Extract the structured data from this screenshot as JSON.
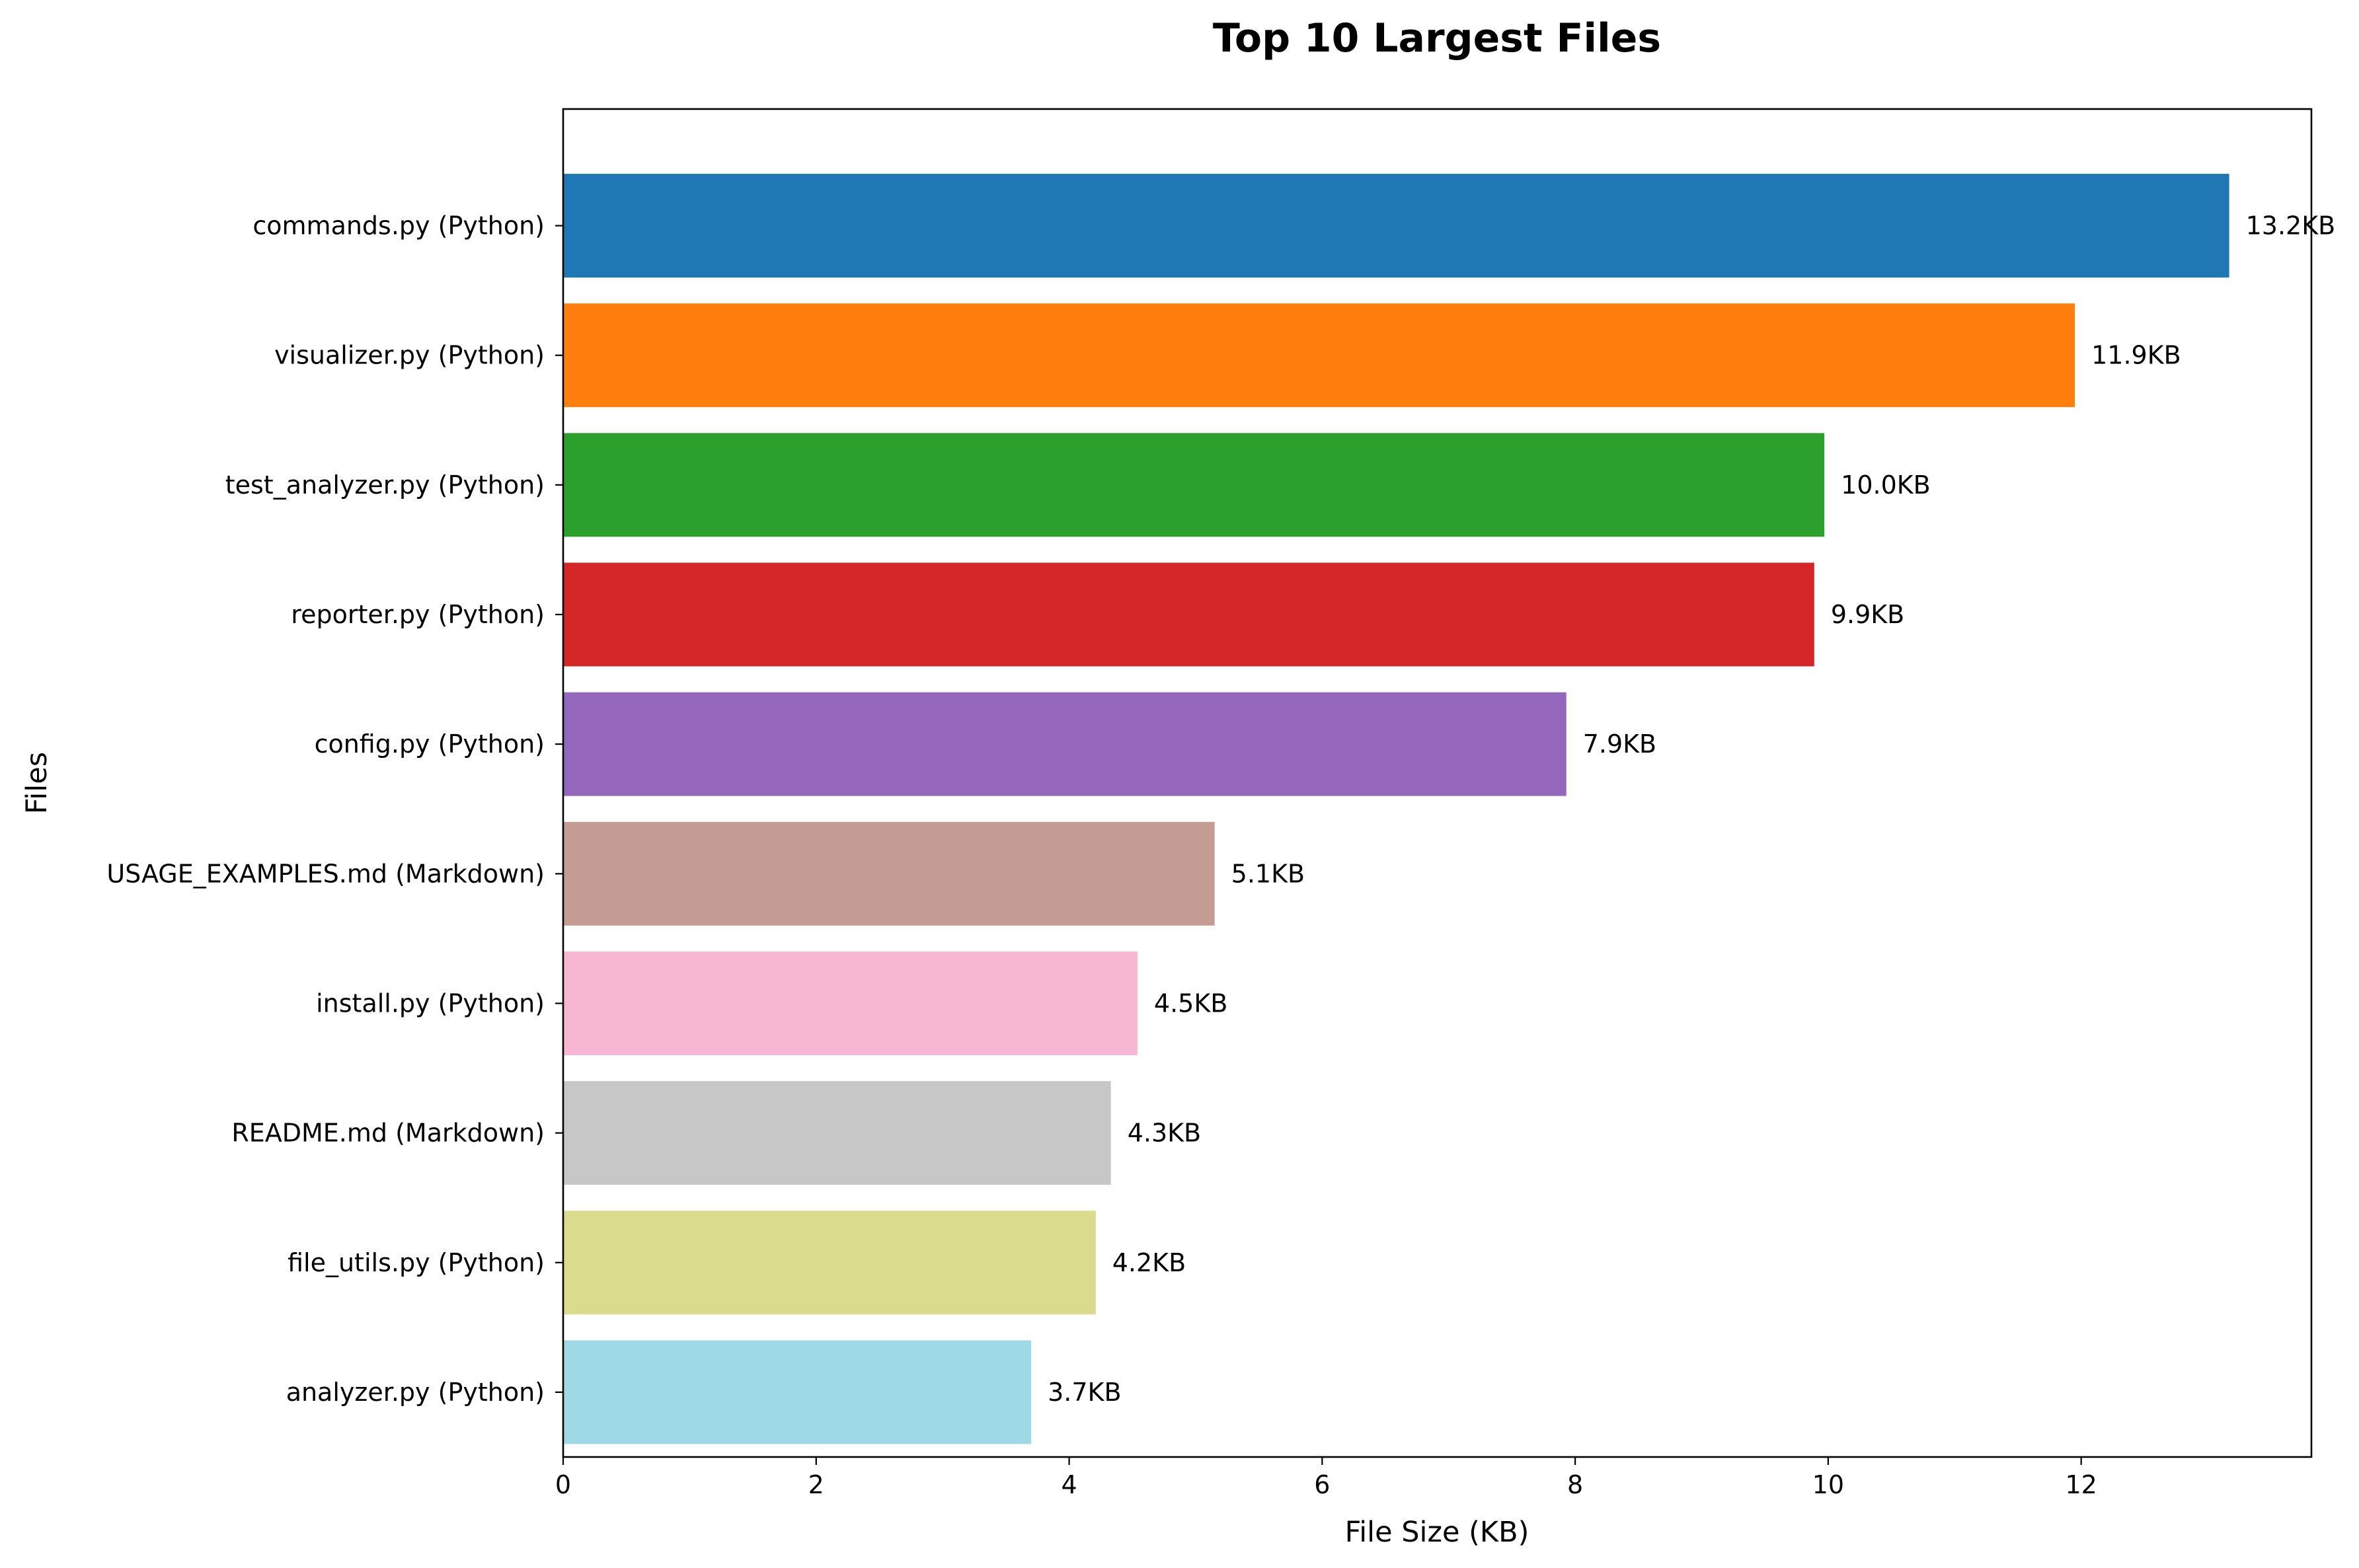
{
  "chart_data": {
    "type": "bar",
    "orientation": "horizontal",
    "title": "Top 10 Largest Files",
    "xlabel": "File Size (KB)",
    "ylabel": "Files",
    "xlim": [
      0,
      13.82
    ],
    "xticks": [
      0,
      2,
      4,
      6,
      8,
      10,
      12
    ],
    "grid": false,
    "legend": "none",
    "categories": [
      "commands.py (Python)",
      "visualizer.py (Python)",
      "test_analyzer.py (Python)",
      "reporter.py (Python)",
      "config.py (Python)",
      "USAGE_EXAMPLES.md (Markdown)",
      "install.py (Python)",
      "README.md (Markdown)",
      "file_utils.py (Python)",
      "analyzer.py (Python)"
    ],
    "values": [
      13.17,
      11.95,
      9.97,
      9.89,
      7.93,
      5.15,
      4.54,
      4.33,
      4.21,
      3.7
    ],
    "value_labels": [
      "13.2KB",
      "11.9KB",
      "10.0KB",
      "9.9KB",
      "7.9KB",
      "5.1KB",
      "4.5KB",
      "4.3KB",
      "4.2KB",
      "3.7KB"
    ],
    "colors": [
      "#1f77b4",
      "#ff7f0e",
      "#2ca02c",
      "#d62728",
      "#9467bd",
      "#c49c94",
      "#f7b6d2",
      "#c7c7c7",
      "#dbdb8d",
      "#9edae5"
    ]
  }
}
